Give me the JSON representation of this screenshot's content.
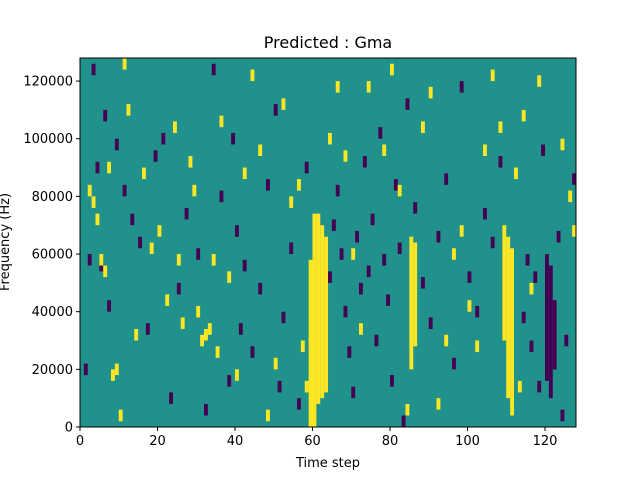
{
  "chart_data": {
    "type": "heatmap",
    "title": "Predicted : Gma",
    "xlabel": "Time step",
    "ylabel": "Frequency (Hz)",
    "xlim": [
      0,
      128
    ],
    "ylim": [
      0,
      128000
    ],
    "xticks": [
      0,
      20,
      40,
      60,
      80,
      100,
      120
    ],
    "xtick_labels": [
      "0",
      "20",
      "40",
      "60",
      "80",
      "100",
      "120"
    ],
    "yticks": [
      0,
      20000,
      40000,
      60000,
      80000,
      100000,
      120000
    ],
    "ytick_labels": [
      "0",
      "20000",
      "40000",
      "60000",
      "80000",
      "100000",
      "120000"
    ],
    "grid": false,
    "colormap": "viridis (3 levels)",
    "levels": [
      {
        "value": -1,
        "color": "#440154"
      },
      {
        "value": 0,
        "color": "#21918c"
      },
      {
        "value": 1,
        "color": "#fde725"
      }
    ],
    "background_value": 0,
    "yellow_columns": [
      {
        "time_step": 59,
        "y_range": [
          0,
          58000
        ]
      },
      {
        "time_step": 60,
        "y_range": [
          0,
          74000
        ]
      },
      {
        "time_step": 61,
        "y_range": [
          8000,
          74000
        ]
      },
      {
        "time_step": 62,
        "y_range": [
          10000,
          70000
        ]
      },
      {
        "time_step": 63,
        "y_range": [
          12000,
          66000
        ]
      },
      {
        "time_step": 85,
        "y_range": [
          20000,
          66000
        ]
      },
      {
        "time_step": 86,
        "y_range": [
          28000,
          64000
        ]
      },
      {
        "time_step": 109,
        "y_range": [
          30000,
          70000
        ]
      },
      {
        "time_step": 110,
        "y_range": [
          10000,
          66000
        ]
      },
      {
        "time_step": 111,
        "y_range": [
          4000,
          62000
        ]
      }
    ],
    "dark_columns": [
      {
        "time_step": 120,
        "y_range": [
          16000,
          60000
        ]
      },
      {
        "time_step": 121,
        "y_range": [
          10000,
          56000
        ]
      },
      {
        "time_step": 122,
        "y_range": [
          20000,
          44000
        ]
      }
    ],
    "yellow_points": [
      [
        2,
        82000
      ],
      [
        3,
        78000
      ],
      [
        4,
        72000
      ],
      [
        5,
        58000
      ],
      [
        6,
        54000
      ],
      [
        7,
        90000
      ],
      [
        8,
        18000
      ],
      [
        9,
        20000
      ],
      [
        10,
        4000
      ],
      [
        11,
        126000
      ],
      [
        12,
        110000
      ],
      [
        14,
        32000
      ],
      [
        16,
        88000
      ],
      [
        18,
        62000
      ],
      [
        20,
        68000
      ],
      [
        22,
        44000
      ],
      [
        24,
        104000
      ],
      [
        25,
        58000
      ],
      [
        26,
        36000
      ],
      [
        28,
        92000
      ],
      [
        29,
        82000
      ],
      [
        30,
        40000
      ],
      [
        31,
        30000
      ],
      [
        32,
        32000
      ],
      [
        33,
        34000
      ],
      [
        34,
        58000
      ],
      [
        35,
        26000
      ],
      [
        36,
        106000
      ],
      [
        38,
        52000
      ],
      [
        40,
        18000
      ],
      [
        42,
        88000
      ],
      [
        44,
        122000
      ],
      [
        46,
        96000
      ],
      [
        48,
        4000
      ],
      [
        50,
        22000
      ],
      [
        52,
        112000
      ],
      [
        54,
        78000
      ],
      [
        56,
        84000
      ],
      [
        57,
        28000
      ],
      [
        58,
        14000
      ],
      [
        64,
        100000
      ],
      [
        66,
        118000
      ],
      [
        68,
        94000
      ],
      [
        70,
        60000
      ],
      [
        72,
        34000
      ],
      [
        74,
        118000
      ],
      [
        78,
        96000
      ],
      [
        80,
        124000
      ],
      [
        82,
        82000
      ],
      [
        84,
        6000
      ],
      [
        88,
        104000
      ],
      [
        90,
        116000
      ],
      [
        92,
        8000
      ],
      [
        94,
        30000
      ],
      [
        96,
        60000
      ],
      [
        98,
        68000
      ],
      [
        100,
        42000
      ],
      [
        102,
        28000
      ],
      [
        104,
        96000
      ],
      [
        106,
        122000
      ],
      [
        108,
        104000
      ],
      [
        112,
        88000
      ],
      [
        113,
        14000
      ],
      [
        114,
        108000
      ],
      [
        116,
        48000
      ],
      [
        118,
        120000
      ],
      [
        124,
        98000
      ],
      [
        126,
        80000
      ],
      [
        127,
        68000
      ]
    ],
    "dark_points": [
      [
        1,
        20000
      ],
      [
        2,
        58000
      ],
      [
        3,
        124000
      ],
      [
        4,
        90000
      ],
      [
        5,
        56000
      ],
      [
        6,
        108000
      ],
      [
        7,
        42000
      ],
      [
        9,
        98000
      ],
      [
        11,
        82000
      ],
      [
        13,
        72000
      ],
      [
        15,
        64000
      ],
      [
        17,
        34000
      ],
      [
        19,
        94000
      ],
      [
        21,
        100000
      ],
      [
        23,
        10000
      ],
      [
        25,
        48000
      ],
      [
        27,
        74000
      ],
      [
        30,
        60000
      ],
      [
        32,
        6000
      ],
      [
        34,
        124000
      ],
      [
        36,
        80000
      ],
      [
        38,
        16000
      ],
      [
        39,
        100000
      ],
      [
        40,
        68000
      ],
      [
        41,
        34000
      ],
      [
        42,
        56000
      ],
      [
        44,
        26000
      ],
      [
        46,
        48000
      ],
      [
        48,
        84000
      ],
      [
        50,
        110000
      ],
      [
        51,
        14000
      ],
      [
        52,
        38000
      ],
      [
        54,
        62000
      ],
      [
        56,
        8000
      ],
      [
        58,
        90000
      ],
      [
        64,
        52000
      ],
      [
        65,
        70000
      ],
      [
        66,
        82000
      ],
      [
        67,
        60000
      ],
      [
        68,
        40000
      ],
      [
        69,
        26000
      ],
      [
        70,
        12000
      ],
      [
        71,
        66000
      ],
      [
        72,
        48000
      ],
      [
        73,
        92000
      ],
      [
        74,
        54000
      ],
      [
        75,
        72000
      ],
      [
        76,
        30000
      ],
      [
        77,
        102000
      ],
      [
        78,
        58000
      ],
      [
        79,
        44000
      ],
      [
        80,
        16000
      ],
      [
        81,
        84000
      ],
      [
        82,
        62000
      ],
      [
        83,
        2000
      ],
      [
        84,
        112000
      ],
      [
        86,
        76000
      ],
      [
        88,
        50000
      ],
      [
        90,
        36000
      ],
      [
        92,
        66000
      ],
      [
        94,
        86000
      ],
      [
        96,
        22000
      ],
      [
        98,
        118000
      ],
      [
        100,
        52000
      ],
      [
        102,
        40000
      ],
      [
        104,
        74000
      ],
      [
        106,
        64000
      ],
      [
        108,
        92000
      ],
      [
        114,
        38000
      ],
      [
        115,
        58000
      ],
      [
        116,
        28000
      ],
      [
        117,
        52000
      ],
      [
        118,
        14000
      ],
      [
        119,
        96000
      ],
      [
        123,
        66000
      ],
      [
        124,
        4000
      ],
      [
        125,
        30000
      ],
      [
        127,
        86000
      ]
    ]
  }
}
